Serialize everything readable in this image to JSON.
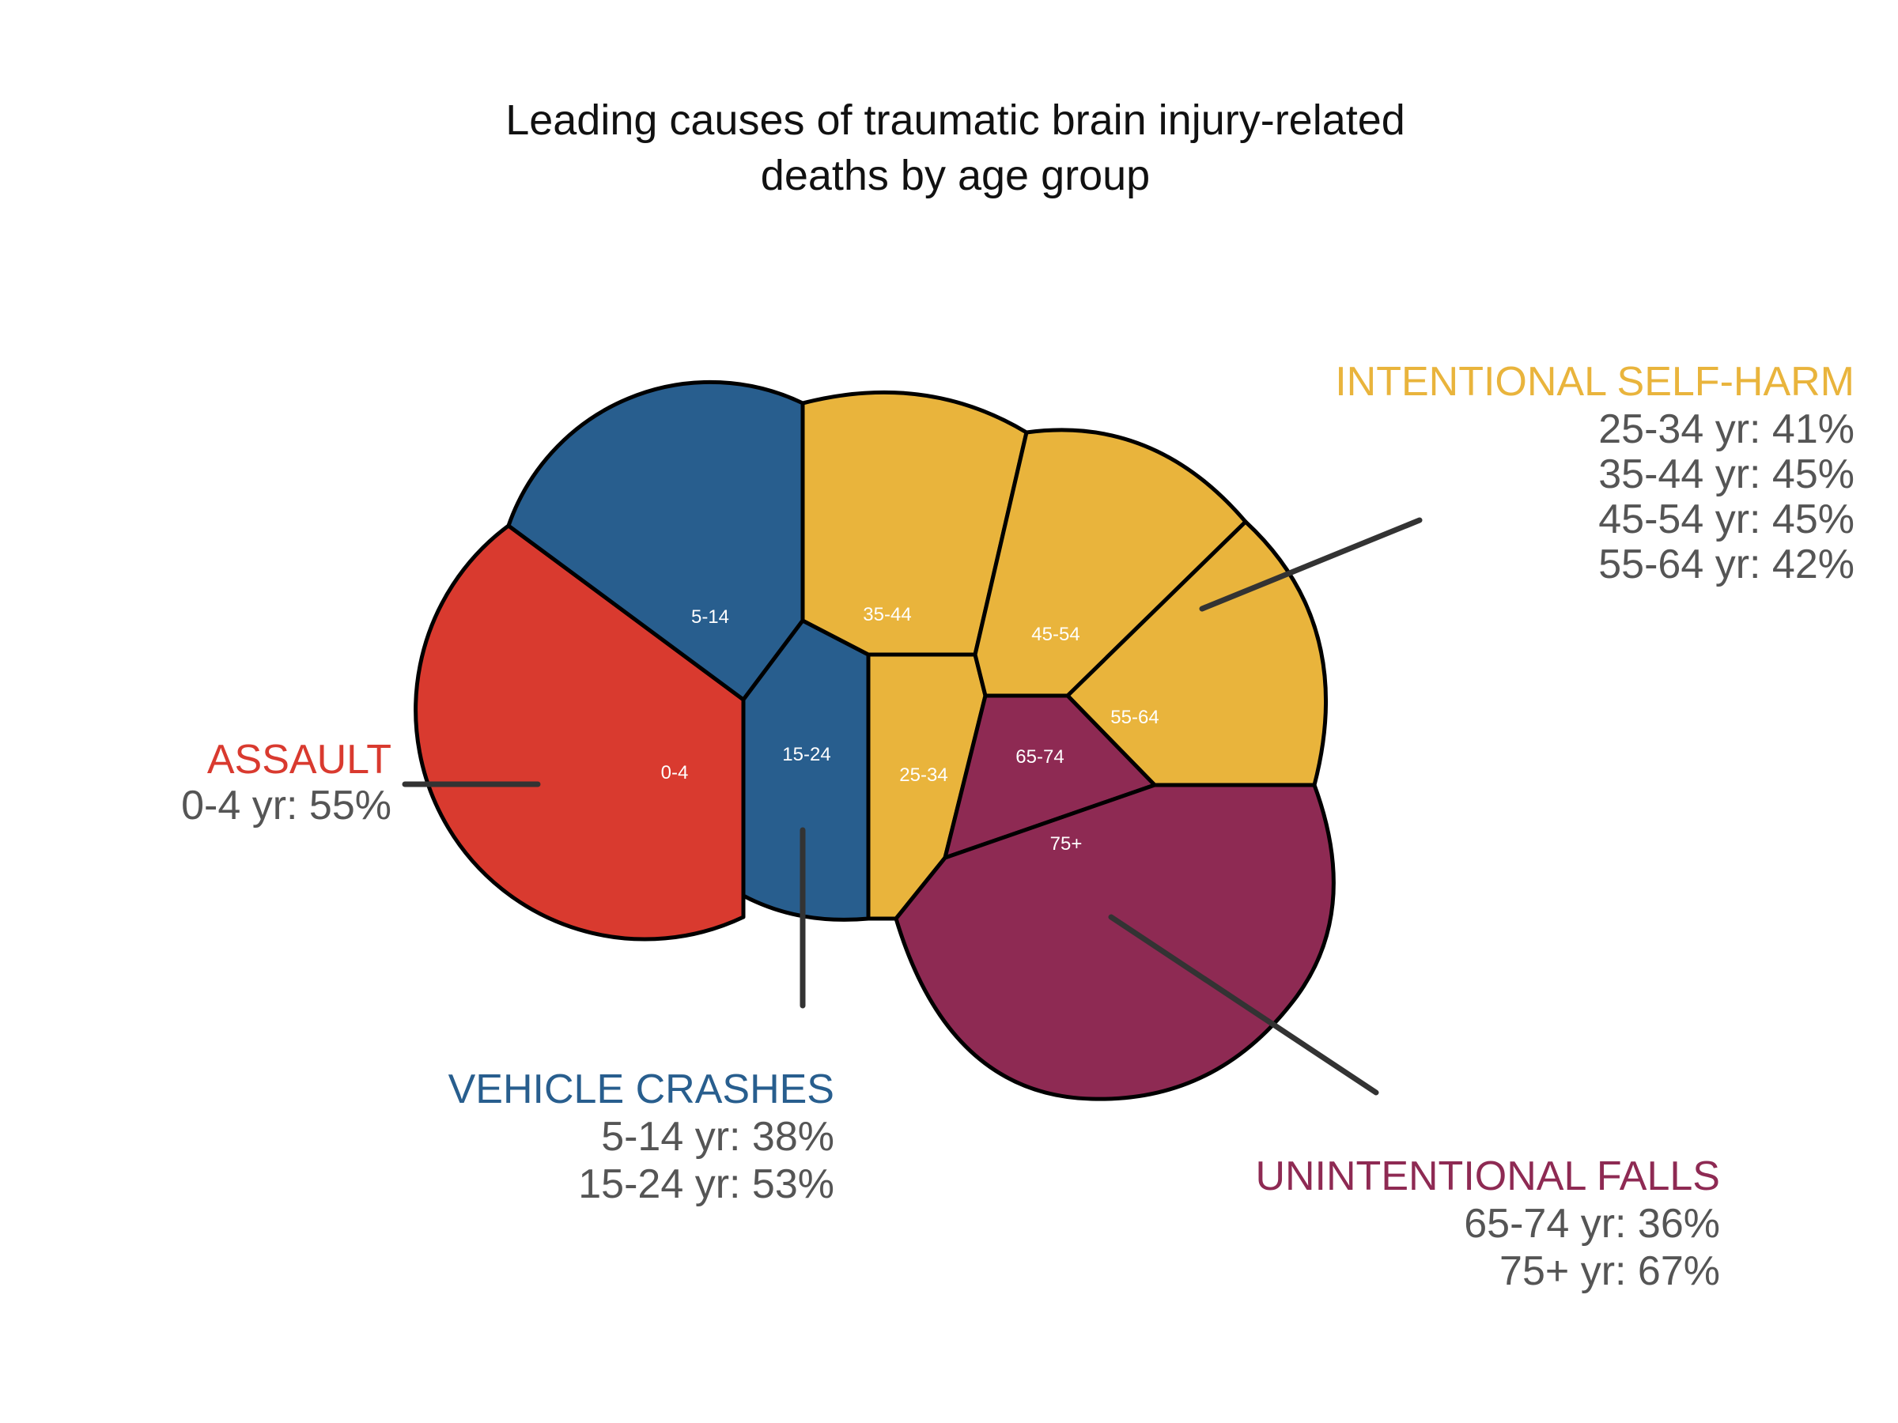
{
  "chart_data": {
    "type": "other",
    "title_lines": [
      "Leading causes of traumatic brain injury-related",
      "deaths by age group"
    ],
    "segments": [
      {
        "age_group": "0-4",
        "cause": "ASSAULT"
      },
      {
        "age_group": "5-14",
        "cause": "VEHICLE CRASHES"
      },
      {
        "age_group": "15-24",
        "cause": "VEHICLE CRASHES"
      },
      {
        "age_group": "25-34",
        "cause": "INTENTIONAL SELF-HARM"
      },
      {
        "age_group": "35-44",
        "cause": "INTENTIONAL SELF-HARM"
      },
      {
        "age_group": "45-54",
        "cause": "INTENTIONAL SELF-HARM"
      },
      {
        "age_group": "55-64",
        "cause": "INTENTIONAL SELF-HARM"
      },
      {
        "age_group": "65-74",
        "cause": "UNINTENTIONAL FALLS"
      },
      {
        "age_group": "75+",
        "cause": "UNINTENTIONAL FALLS"
      }
    ],
    "causes": [
      {
        "name": "ASSAULT",
        "color": "#D93A2F",
        "stats": [
          {
            "label": "0-4 yr: 55%",
            "age_group": "0-4",
            "percent": 55
          }
        ]
      },
      {
        "name": "VEHICLE CRASHES",
        "color": "#285E8E",
        "stats": [
          {
            "label": "5-14 yr: 38%",
            "age_group": "5-14",
            "percent": 38
          },
          {
            "label": "15-24 yr: 53%",
            "age_group": "15-24",
            "percent": 53
          }
        ]
      },
      {
        "name": "INTENTIONAL SELF-HARM",
        "color": "#E9B43C",
        "stats": [
          {
            "label": "25-34 yr: 41%",
            "age_group": "25-34",
            "percent": 41
          },
          {
            "label": "35-44 yr: 45%",
            "age_group": "35-44",
            "percent": 45
          },
          {
            "label": "45-54 yr: 45%",
            "age_group": "45-54",
            "percent": 45
          },
          {
            "label": "55-64 yr: 42%",
            "age_group": "55-64",
            "percent": 42
          }
        ]
      },
      {
        "name": "UNINTENTIONAL FALLS",
        "color": "#8E2A53",
        "stats": [
          {
            "label": "65-74 yr: 36%",
            "age_group": "65-74",
            "percent": 36
          },
          {
            "label": "75+ yr: 67%",
            "age_group": "75+",
            "percent": 67
          }
        ]
      }
    ]
  }
}
